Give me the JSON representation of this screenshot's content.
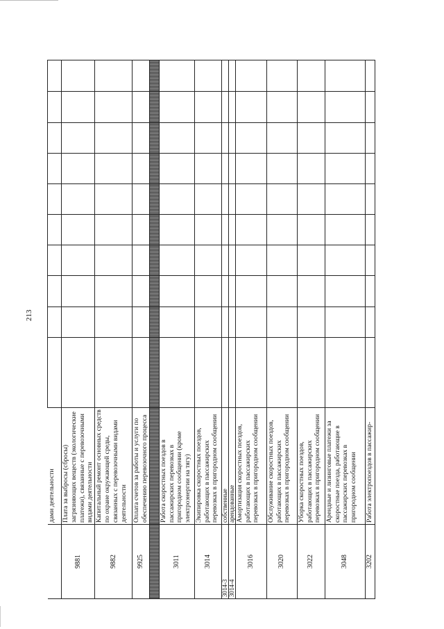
{
  "page_number": "213",
  "rows": [
    {
      "code": "",
      "description": "дами деятельности",
      "height": 20
    },
    {
      "code": "9881",
      "description": "Плата за выбросы (сбросы) загрязняющих веществ (экологические платежи), связанные с перевозочными видами деятельности",
      "height": 38
    },
    {
      "code": "9882",
      "description": "Капитальный ремонт основных средств по охране окружающей среды, связанных с перевозочными видами деятельности",
      "height": 54
    },
    {
      "code": "9925",
      "description": "Оплата счетов за работы и услуги по обеспечению перевозочного процесса",
      "height": 20
    },
    {
      "code": "",
      "description": "",
      "height": 14,
      "shaded": true
    },
    {
      "code": "3011",
      "description": "Работа скоростных поездов в пассажирских перевозках в пригородном сообщении (кроме электроэнергии на тягу)",
      "height": 51
    },
    {
      "code": "3014",
      "description": "Экипировка скоростных поездов, работающих в пассажирских перевозках в пригородном сообщении",
      "height": 39
    },
    {
      "code": "3014-3",
      "description": "собственные",
      "height": 9
    },
    {
      "code": "3014-4",
      "description": "арендованные",
      "height": 10
    },
    {
      "code": "3016",
      "description": "Амортизация скоростных поездов, работающих в пассажирских перевозках в пригородном сообщении",
      "height": 45
    },
    {
      "code": "3020",
      "description": "Обслуживание скоростных поездов, работающих в пассажирских перевозках в пригородном сообщении",
      "height": 44
    },
    {
      "code": "3022",
      "description": "Уборка скоростных поездов, работающих в пассажирских перевозках в пригородном сообщении",
      "height": 40
    },
    {
      "code": "3048",
      "description": "Арендные и лизинговые платежи за скоростные поезда, работающие в пассажирских перевозках в пригородном сообщении",
      "height": 58
    },
    {
      "code": "3202",
      "description": "Работа электропоездов в пассажир-",
      "height": 14
    }
  ]
}
